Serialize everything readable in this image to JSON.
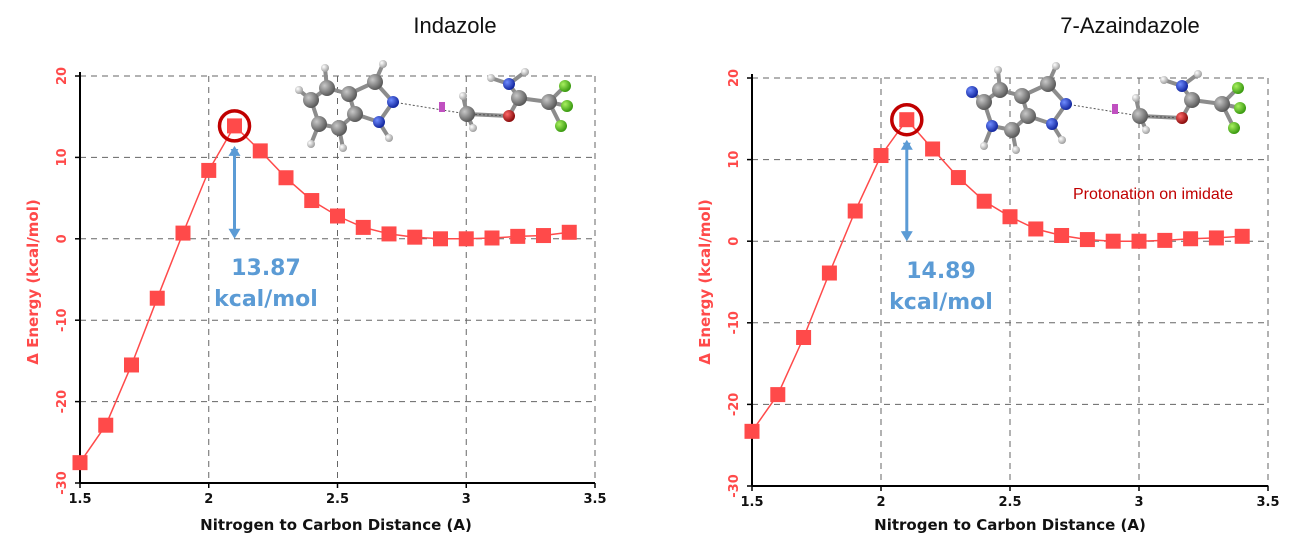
{
  "chart_data": [
    {
      "type": "line",
      "title": "Indazole",
      "xlabel": "Nitrogen to Carbon Distance (A)",
      "ylabel": "Δ Energy (kcal/mol)",
      "xlim": [
        1.5,
        3.5
      ],
      "ylim": [
        -30,
        20
      ],
      "xticks": [
        "1.5",
        "2",
        "2.5",
        "3",
        "3.5"
      ],
      "yticks": [
        "20",
        "10",
        "0",
        "-10",
        "-20",
        "-30"
      ],
      "grid": true,
      "series": [
        {
          "x": [
            1.5,
            1.6,
            1.7,
            1.8,
            1.9,
            2.0,
            2.1,
            2.2,
            2.3,
            2.4,
            2.5,
            2.6,
            2.7,
            2.8,
            2.9,
            3.0,
            3.1,
            3.2,
            3.3,
            3.4
          ],
          "y": [
            -27.5,
            -22.9,
            -15.5,
            -7.3,
            0.7,
            8.4,
            13.87,
            10.8,
            7.5,
            4.7,
            2.8,
            1.4,
            0.6,
            0.2,
            0.0,
            0.0,
            0.1,
            0.3,
            0.4,
            0.8
          ],
          "color": "#ff4a4a"
        }
      ],
      "highlight_x": 2.1,
      "barrier_value": "13.87",
      "barrier_unit": "kcal/mol",
      "note": ""
    },
    {
      "type": "line",
      "title": "7-Azaindazole",
      "xlabel": "Nitrogen to Carbon Distance (A)",
      "ylabel": "Δ Energy (kcal/mol)",
      "xlim": [
        1.5,
        3.5
      ],
      "ylim": [
        -30,
        20
      ],
      "xticks": [
        "1.5",
        "2",
        "2.5",
        "3",
        "3.5"
      ],
      "yticks": [
        "20",
        "10",
        "0",
        "-10",
        "-20",
        "-30"
      ],
      "grid": true,
      "series": [
        {
          "x": [
            1.5,
            1.6,
            1.7,
            1.8,
            1.9,
            2.0,
            2.1,
            2.2,
            2.3,
            2.4,
            2.5,
            2.6,
            2.7,
            2.8,
            2.9,
            3.0,
            3.1,
            3.2,
            3.3,
            3.4
          ],
          "y": [
            -23.3,
            -18.8,
            -11.8,
            -3.9,
            3.7,
            10.5,
            14.89,
            11.3,
            7.8,
            4.9,
            3.0,
            1.5,
            0.7,
            0.2,
            0.0,
            0.0,
            0.1,
            0.3,
            0.4,
            0.6
          ],
          "color": "#ff4a4a"
        }
      ],
      "highlight_x": 2.1,
      "barrier_value": "14.89",
      "barrier_unit": "kcal/mol",
      "note": "Protonation on imidate"
    }
  ],
  "colors": {
    "series": "#ff4a4a",
    "highlight_ring": "#c00000",
    "barrier_arrow": "#5b9bd5",
    "carbon": "#7f7f7f",
    "nitrogen": "#1f3fbf",
    "oxygen": "#b01818",
    "fluorine": "#55c21a",
    "hydrogen": "#d8d8d8"
  }
}
